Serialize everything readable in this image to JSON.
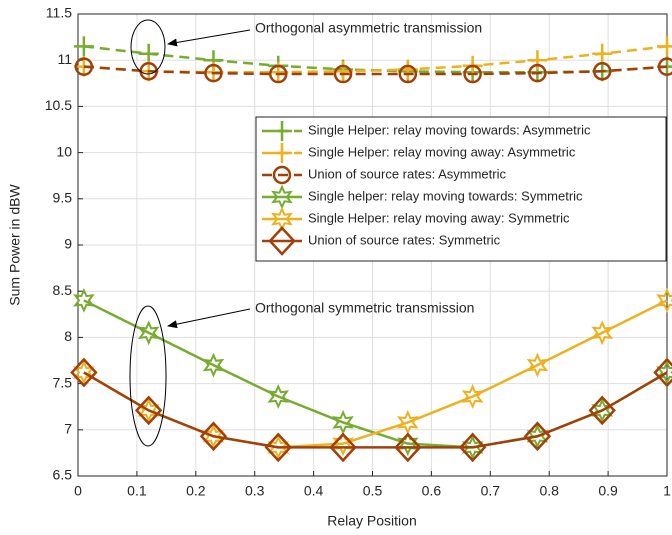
{
  "chart_data": {
    "type": "line",
    "xlabel": "Relay Position",
    "ylabel": "Sum Power in dBW",
    "x": [
      0.01,
      0.12,
      0.23,
      0.34,
      0.45,
      0.56,
      0.67,
      0.78,
      0.89,
      1.0
    ],
    "series": [
      {
        "name": "Single Helper: relay moving towards: Asymmetric",
        "color": "#77ac30",
        "linestyle": "dashed",
        "marker": "plus",
        "values": [
          11.15,
          11.07,
          11.0,
          10.94,
          10.9,
          10.88,
          10.87,
          10.87,
          10.88,
          10.93
        ]
      },
      {
        "name": "Single Helper: relay moving away: Asymmetric",
        "color": "#edb120",
        "linestyle": "dashed",
        "marker": "plus",
        "values": [
          10.93,
          10.88,
          10.87,
          10.87,
          10.88,
          10.9,
          10.94,
          11.0,
          11.07,
          11.15
        ]
      },
      {
        "name": "Union of source rates: Asymmetric",
        "color": "#a2400a",
        "linestyle": "dashed",
        "marker": "circle",
        "values": [
          10.93,
          10.88,
          10.86,
          10.85,
          10.85,
          10.85,
          10.85,
          10.86,
          10.88,
          10.93
        ]
      },
      {
        "name": "Single helper: relay moving towards: Symmetric",
        "color": "#77ac30",
        "linestyle": "solid",
        "marker": "star",
        "values": [
          8.4,
          8.05,
          7.7,
          7.36,
          7.08,
          6.85,
          6.81,
          6.93,
          7.21,
          7.62
        ]
      },
      {
        "name": "Single Helper: relay moving away: Symmetric",
        "color": "#edb120",
        "linestyle": "solid",
        "marker": "star",
        "values": [
          7.62,
          7.21,
          6.93,
          6.81,
          6.85,
          7.08,
          7.36,
          7.7,
          8.05,
          8.4
        ]
      },
      {
        "name": "Union of source rates: Symmetric",
        "color": "#a2400a",
        "linestyle": "solid",
        "marker": "diamond",
        "values": [
          7.62,
          7.21,
          6.93,
          6.81,
          6.81,
          6.81,
          6.81,
          6.93,
          7.21,
          7.62
        ]
      }
    ],
    "xlim": [
      0,
      1
    ],
    "xticks": [
      0,
      0.1,
      0.2,
      0.3,
      0.4,
      0.5,
      0.6,
      0.7,
      0.8,
      0.9,
      1
    ],
    "ylim": [
      6.5,
      11.5
    ],
    "yticks": [
      6.5,
      7,
      7.5,
      8,
      8.5,
      9,
      9.5,
      10,
      10.5,
      11,
      11.5
    ],
    "grid": true,
    "legend": "upper right",
    "annotations": [
      "Orthogonal asymmetric transmission",
      "Orthogonal symmetric transmission"
    ]
  }
}
